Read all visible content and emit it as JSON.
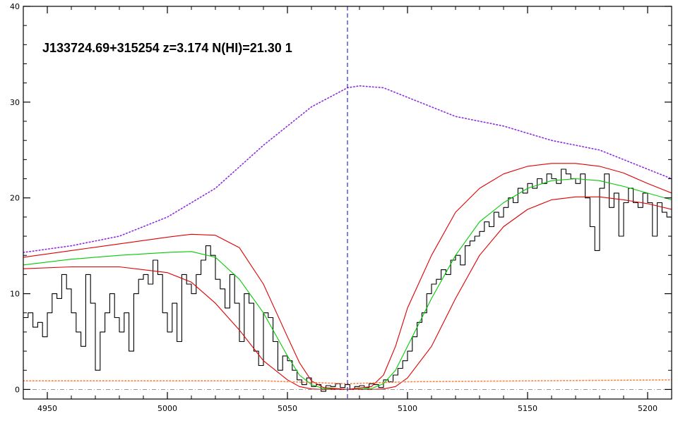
{
  "chart_data": {
    "type": "line",
    "title": "J133724.69+315254 z=3.174 N(HI)=21.30 1",
    "xlabel": "",
    "ylabel": "",
    "xlim": [
      4940,
      5210
    ],
    "ylim": [
      -1,
      40
    ],
    "x_ticks": [
      4950,
      5000,
      5050,
      5100,
      5150,
      5200
    ],
    "y_ticks": [
      0,
      10,
      20,
      30,
      40
    ],
    "grid": false,
    "legend": "none",
    "dla_center": 5075,
    "series": [
      {
        "role": "flux",
        "style": "histogram",
        "color": "#000000",
        "x": [
          4940,
          4942,
          4944,
          4946,
          4948,
          4950,
          4952,
          4954,
          4956,
          4958,
          4960,
          4962,
          4964,
          4966,
          4968,
          4970,
          4972,
          4974,
          4976,
          4978,
          4980,
          4982,
          4984,
          4986,
          4988,
          4990,
          4992,
          4994,
          4996,
          4998,
          5000,
          5002,
          5004,
          5006,
          5008,
          5010,
          5012,
          5014,
          5016,
          5018,
          5020,
          5022,
          5024,
          5026,
          5028,
          5030,
          5032,
          5034,
          5036,
          5038,
          5040,
          5042,
          5044,
          5046,
          5048,
          5050,
          5052,
          5054,
          5056,
          5058,
          5060,
          5062,
          5064,
          5066,
          5068,
          5070,
          5072,
          5074,
          5076,
          5078,
          5080,
          5082,
          5084,
          5086,
          5088,
          5090,
          5092,
          5094,
          5096,
          5098,
          5100,
          5102,
          5104,
          5106,
          5108,
          5110,
          5112,
          5114,
          5116,
          5118,
          5120,
          5122,
          5124,
          5126,
          5128,
          5130,
          5132,
          5134,
          5136,
          5138,
          5140,
          5142,
          5144,
          5146,
          5148,
          5150,
          5152,
          5154,
          5156,
          5158,
          5160,
          5162,
          5164,
          5166,
          5168,
          5170,
          5172,
          5174,
          5176,
          5178,
          5180,
          5182,
          5184,
          5186,
          5188,
          5190,
          5192,
          5194,
          5196,
          5198,
          5200,
          5202,
          5204,
          5206,
          5208
        ],
        "y": [
          7.5,
          8.0,
          6.5,
          7.0,
          5.5,
          8.0,
          10.0,
          9.5,
          12.0,
          10.5,
          8.0,
          6.0,
          4.5,
          12.0,
          9.0,
          2.0,
          6.0,
          8.0,
          10.0,
          7.5,
          6.0,
          8.0,
          4.0,
          10.0,
          11.5,
          12.0,
          11.0,
          13.5,
          12.0,
          8.0,
          6.0,
          9.0,
          5.0,
          12.0,
          11.0,
          10.0,
          12.0,
          13.5,
          15.0,
          14.0,
          11.5,
          10.5,
          8.5,
          12.0,
          9.0,
          5.0,
          10.0,
          9.0,
          4.0,
          2.5,
          8.0,
          7.5,
          5.0,
          2.0,
          3.5,
          3.0,
          2.0,
          1.0,
          0.5,
          1.2,
          0.3,
          0.5,
          -0.2,
          0.4,
          0.3,
          0.6,
          0.2,
          0.5,
          0.0,
          0.3,
          0.4,
          0.2,
          0.6,
          0.5,
          0.2,
          1.0,
          0.8,
          1.5,
          2.2,
          3.0,
          4.0,
          5.5,
          7.0,
          8.0,
          10.0,
          11.0,
          11.5,
          12.5,
          12.0,
          13.5,
          14.0,
          13.0,
          15.0,
          15.5,
          16.0,
          16.5,
          17.5,
          17.0,
          18.5,
          18.0,
          19.0,
          20.0,
          19.5,
          21.0,
          20.5,
          21.5,
          21.0,
          22.0,
          21.5,
          22.5,
          22.0,
          21.5,
          23.0,
          22.5,
          22.0,
          21.5,
          22.5,
          20.0,
          17.0,
          14.5,
          21.0,
          22.5,
          19.0,
          20.5,
          16.0,
          19.5,
          21.0,
          19.5,
          19.0,
          20.5,
          19.5,
          16.0,
          19.5,
          18.5,
          18.0
        ]
      },
      {
        "role": "continuum",
        "style": "dotted",
        "color": "#8a2be2",
        "x": [
          4940,
          4960,
          4980,
          5000,
          5020,
          5040,
          5060,
          5075,
          5080,
          5090,
          5100,
          5120,
          5140,
          5160,
          5180,
          5200,
          5210
        ],
        "y": [
          14.3,
          15.0,
          16.0,
          18.0,
          21.0,
          25.5,
          29.5,
          31.5,
          31.7,
          31.5,
          30.5,
          28.5,
          27.5,
          26.0,
          25.0,
          23.0,
          22.0
        ]
      },
      {
        "role": "fit",
        "style": "solid",
        "color": "#00cc00",
        "x": [
          4940,
          4960,
          4980,
          5000,
          5010,
          5020,
          5030,
          5040,
          5050,
          5055,
          5060,
          5065,
          5075,
          5085,
          5090,
          5095,
          5100,
          5110,
          5120,
          5130,
          5140,
          5150,
          5160,
          5170,
          5180,
          5190,
          5200,
          5210
        ],
        "y": [
          13.0,
          13.6,
          14.0,
          14.3,
          14.4,
          13.8,
          11.5,
          8.0,
          3.5,
          1.5,
          0.5,
          0.1,
          0.0,
          0.1,
          0.6,
          2.0,
          4.5,
          9.5,
          14.0,
          17.5,
          19.5,
          21.0,
          21.8,
          22.0,
          21.8,
          21.2,
          20.5,
          19.8
        ]
      },
      {
        "role": "fit-upper",
        "style": "solid",
        "color": "#dd0000",
        "x": [
          4940,
          4960,
          4980,
          5000,
          5010,
          5020,
          5030,
          5040,
          5050,
          5055,
          5060,
          5065,
          5075,
          5085,
          5090,
          5095,
          5100,
          5110,
          5120,
          5130,
          5140,
          5150,
          5160,
          5170,
          5180,
          5190,
          5200,
          5210
        ],
        "y": [
          13.8,
          14.5,
          15.2,
          15.9,
          16.2,
          16.1,
          14.8,
          11.0,
          5.5,
          2.8,
          0.9,
          0.2,
          0.0,
          0.3,
          1.5,
          4.5,
          8.5,
          14.0,
          18.5,
          21.0,
          22.5,
          23.3,
          23.6,
          23.6,
          23.3,
          22.6,
          21.5,
          20.5
        ]
      },
      {
        "role": "fit-lower",
        "style": "solid",
        "color": "#dd0000",
        "x": [
          4940,
          4960,
          4980,
          5000,
          5010,
          5020,
          5030,
          5040,
          5050,
          5055,
          5060,
          5065,
          5075,
          5085,
          5090,
          5095,
          5100,
          5110,
          5120,
          5130,
          5140,
          5150,
          5160,
          5170,
          5180,
          5190,
          5200,
          5210
        ],
        "y": [
          12.6,
          12.8,
          12.8,
          12.2,
          11.2,
          9.0,
          6.2,
          3.0,
          1.0,
          0.3,
          0.05,
          0.0,
          0.0,
          0.0,
          0.05,
          0.3,
          1.2,
          4.5,
          9.5,
          14.0,
          17.0,
          18.8,
          19.8,
          20.1,
          20.1,
          19.8,
          19.4,
          18.8
        ]
      },
      {
        "role": "error",
        "style": "dotted",
        "color": "#ff8040",
        "x": [
          4940,
          5000,
          5040,
          5075,
          5100,
          5150,
          5210
        ],
        "y": [
          0.9,
          0.9,
          0.9,
          0.6,
          0.8,
          0.9,
          1.0
        ]
      },
      {
        "role": "zero-level",
        "style": "dash-dot",
        "color": "#888888",
        "x": [
          4940,
          5210
        ],
        "y": [
          0,
          0
        ]
      }
    ]
  }
}
